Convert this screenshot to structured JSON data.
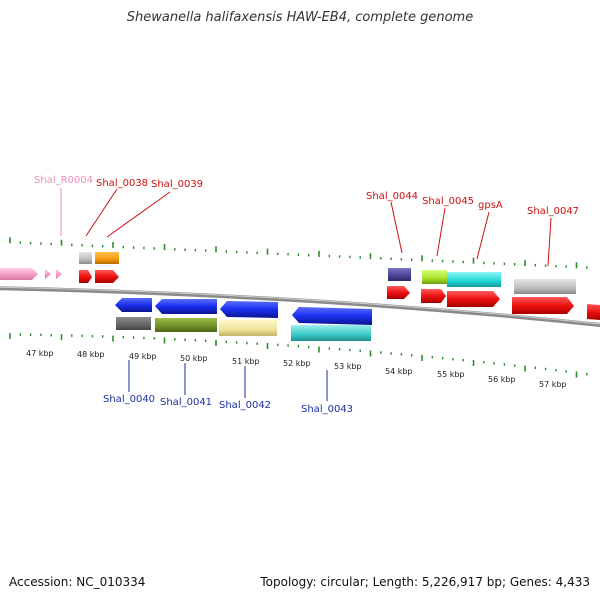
{
  "title": "Shewanella halifaxensis HAW-EB4, complete genome",
  "footer": {
    "accession": "Accession: NC_010334",
    "summary": "Topology: circular; Length: 5,226,917 bp; Genes: 4,433"
  },
  "scale": {
    "unit": "kbp",
    "labels": [
      "47 kbp",
      "48 kbp",
      "49 kbp",
      "50 kbp",
      "51 kbp",
      "52 kbp",
      "53 kbp",
      "54 kbp",
      "55 kbp",
      "56 kbp",
      "57 kbp"
    ]
  },
  "colors": {
    "backbone": "#7a7a7a",
    "tick": "#2f8a2f",
    "forward_label": "#cc1111",
    "reverse_label": "#1a2fa0",
    "rna_label": "#f08db8",
    "cds_forward": "#ee1111",
    "cds_reverse": "#1a2fee",
    "rna": "#f6a0c8"
  },
  "features": {
    "top_labels": [
      {
        "name": "Shal_R0004",
        "kind": "rna"
      },
      {
        "name": "Shal_0038",
        "kind": "forward"
      },
      {
        "name": "Shal_0039",
        "kind": "forward"
      },
      {
        "name": "Shal_0044",
        "kind": "forward"
      },
      {
        "name": "Shal_0045",
        "kind": "forward"
      },
      {
        "name": "gpsA",
        "kind": "forward"
      },
      {
        "name": "Shal_0047",
        "kind": "forward"
      }
    ],
    "bottom_labels": [
      {
        "name": "Shal_0040",
        "kind": "reverse"
      },
      {
        "name": "Shal_0041",
        "kind": "reverse"
      },
      {
        "name": "Shal_0042",
        "kind": "reverse"
      },
      {
        "name": "Shal_0043",
        "kind": "reverse"
      }
    ]
  }
}
